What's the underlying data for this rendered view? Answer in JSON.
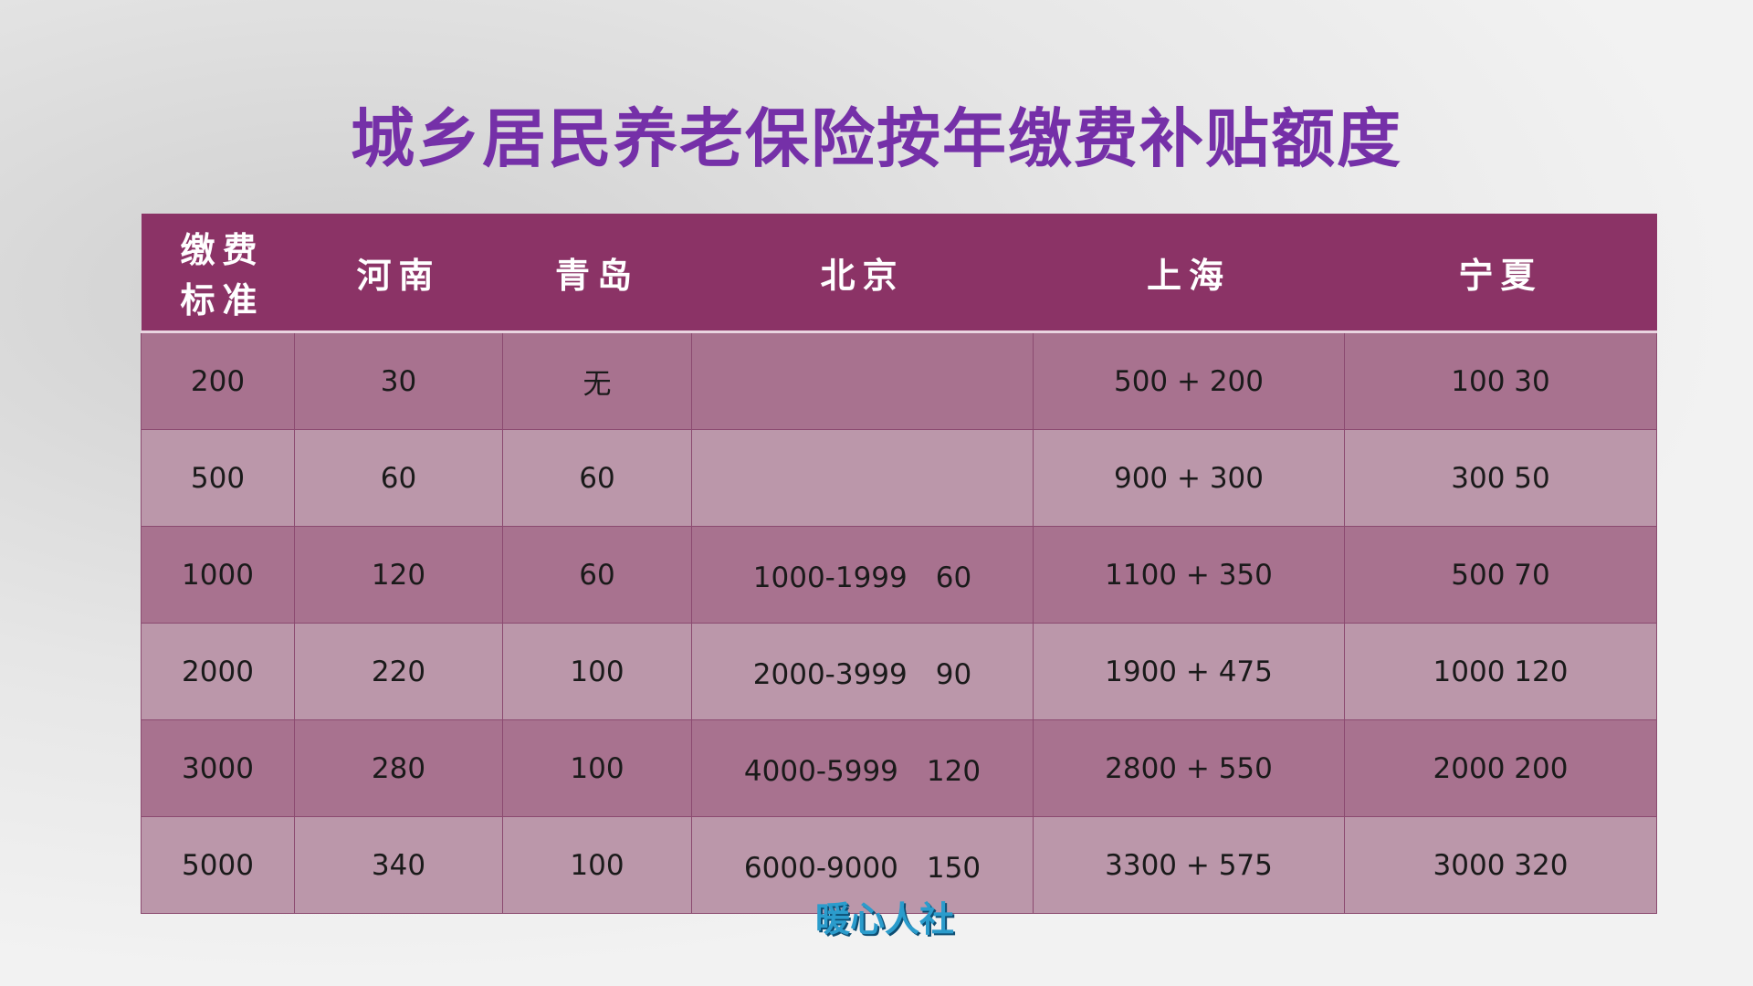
{
  "title": "城乡居民养老保险按年缴费补贴额度",
  "table": {
    "header": [
      "缴费标准",
      "河南",
      "青岛",
      "北京",
      "上海",
      "宁夏"
    ],
    "rows": [
      [
        "200",
        "30",
        "无",
        null,
        "500 + 200",
        "100 30"
      ],
      [
        "500",
        "60",
        "60",
        null,
        "900 + 300",
        "300 50"
      ],
      [
        "1000",
        "120",
        "60",
        "1000-1999　60",
        "1100 + 350",
        "500 70"
      ],
      [
        "2000",
        "220",
        "100",
        "2000-3999　90",
        "1900 + 475",
        "1000 120"
      ],
      [
        "3000",
        "280",
        "100",
        "4000-5999　120",
        "2800 + 550",
        "2000 200"
      ],
      [
        "5000",
        "340",
        "100",
        "6000-9000　150",
        "3300 + 575",
        "3000 320"
      ]
    ]
  },
  "watermark": "暖心人社"
}
